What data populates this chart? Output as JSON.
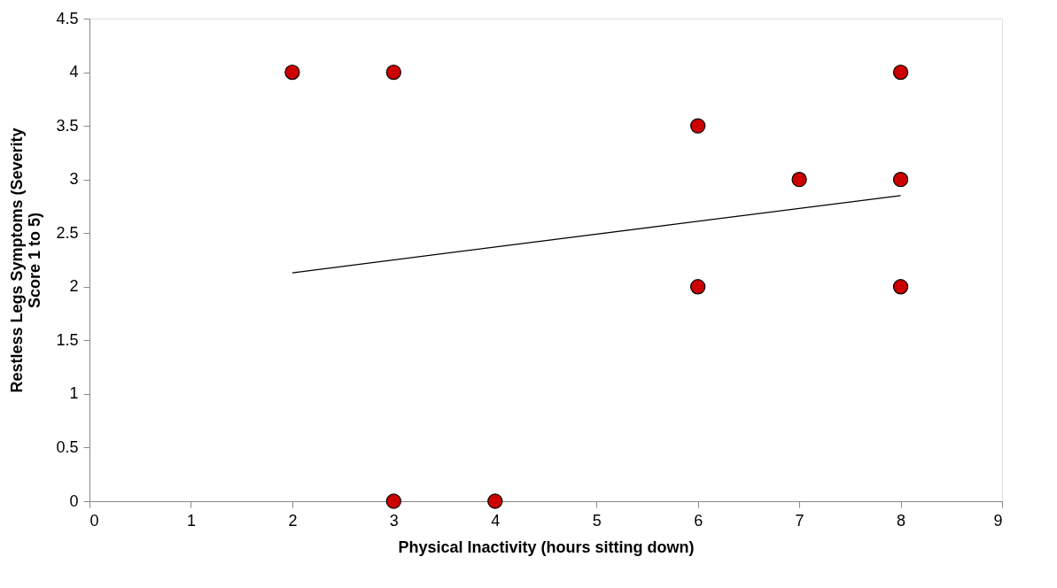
{
  "chart_data": {
    "type": "scatter",
    "xlabel": "Physical Inactivity (hours sitting down)",
    "ylabel": "Restless Legs Symptoms (Severity Score 1 to 5)",
    "x": [
      2,
      3,
      8,
      6,
      7,
      8,
      6,
      8,
      3,
      4
    ],
    "series": [
      {
        "color": "#cc0000",
        "values": [
          4,
          4,
          4,
          3.5,
          3,
          3,
          2,
          2,
          0,
          0
        ],
        "marker": "circle"
      },
      {
        "type": "line",
        "color": "#000000",
        "x": [
          2,
          8
        ],
        "values": [
          2.13,
          2.85
        ],
        "marker": "none",
        "line_style": "solid"
      }
    ],
    "xlim": [
      0,
      9
    ],
    "xticks": [
      0,
      1,
      2,
      3,
      4,
      5,
      6,
      7,
      8,
      9
    ],
    "ylim": [
      0,
      4.5
    ],
    "yticks": [
      0,
      0.5,
      1,
      1.5,
      2,
      2.5,
      3,
      3.5,
      4,
      4.5
    ],
    "grid": false
  }
}
